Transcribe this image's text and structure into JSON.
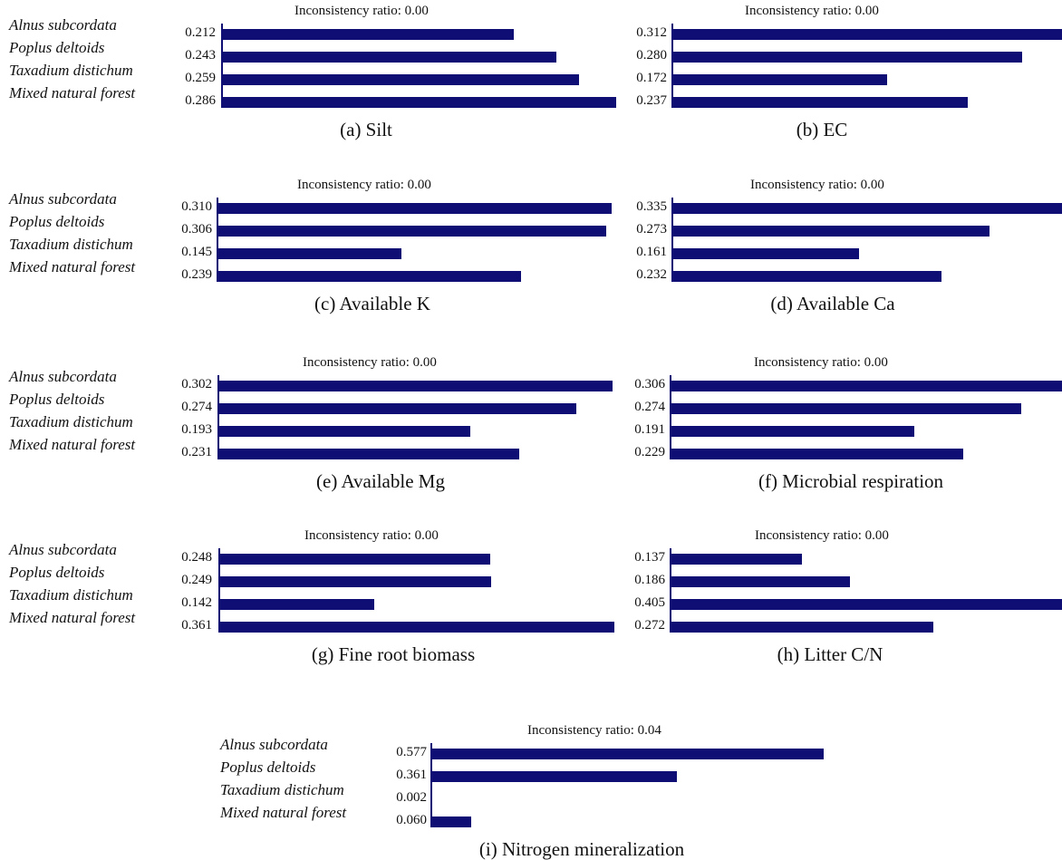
{
  "species": [
    "Alnus subcordata",
    "Poplus deltoids",
    "Taxadium distichum",
    "Mixed natural forest"
  ],
  "colors": {
    "bar": "#0e0e74"
  },
  "chart_data": [
    {
      "type": "bar",
      "orientation": "horizontal",
      "title": "(a) Silt",
      "inconsistency": "Inconsistency ratio: 0.00",
      "categories": [
        "Alnus subcordata",
        "Poplus deltoids",
        "Taxadium distichum",
        "Mixed natural forest"
      ],
      "values": [
        0.212,
        0.243,
        0.259,
        0.286
      ],
      "value_labels": [
        "0.212",
        "0.243",
        "0.259",
        "0.286"
      ],
      "xlim": [
        0,
        0.286
      ]
    },
    {
      "type": "bar",
      "orientation": "horizontal",
      "title": "(b) EC",
      "inconsistency": "Inconsistency ratio: 0.00",
      "categories": [
        "Alnus subcordata",
        "Poplus deltoids",
        "Taxadium distichum",
        "Mixed natural forest"
      ],
      "values": [
        0.312,
        0.28,
        0.172,
        0.237
      ],
      "value_labels": [
        "0.312",
        "0.280",
        "0.172",
        "0.237"
      ],
      "xlim": [
        0,
        0.312
      ]
    },
    {
      "type": "bar",
      "orientation": "horizontal",
      "title": "(c) Available K",
      "inconsistency": "Inconsistency ratio: 0.00",
      "categories": [
        "Alnus subcordata",
        "Poplus deltoids",
        "Taxadium distichum",
        "Mixed natural forest"
      ],
      "values": [
        0.31,
        0.306,
        0.145,
        0.239
      ],
      "value_labels": [
        "0.310",
        "0.306",
        "0.145",
        "0.239"
      ],
      "xlim": [
        0,
        0.31
      ]
    },
    {
      "type": "bar",
      "orientation": "horizontal",
      "title": "(d) Available Ca",
      "inconsistency": "Inconsistency ratio: 0.00",
      "categories": [
        "Alnus subcordata",
        "Poplus deltoids",
        "Taxadium distichum",
        "Mixed natural forest"
      ],
      "values": [
        0.335,
        0.273,
        0.161,
        0.232
      ],
      "value_labels": [
        "0.335",
        "0.273",
        "0.161",
        "0.232"
      ],
      "xlim": [
        0,
        0.335
      ]
    },
    {
      "type": "bar",
      "orientation": "horizontal",
      "title": "(e) Available Mg",
      "inconsistency": "Inconsistency ratio: 0.00",
      "categories": [
        "Alnus subcordata",
        "Poplus deltoids",
        "Taxadium distichum",
        "Mixed natural forest"
      ],
      "values": [
        0.302,
        0.274,
        0.193,
        0.231
      ],
      "value_labels": [
        "0.302",
        "0.274",
        "0.193",
        "0.231"
      ],
      "xlim": [
        0,
        0.302
      ]
    },
    {
      "type": "bar",
      "orientation": "horizontal",
      "title": "(f) Microbial respiration",
      "inconsistency": "Inconsistency ratio: 0.00",
      "categories": [
        "Alnus subcordata",
        "Poplus deltoids",
        "Taxadium distichum",
        "Mixed natural forest"
      ],
      "values": [
        0.306,
        0.274,
        0.191,
        0.229
      ],
      "value_labels": [
        "0.306",
        "0.274",
        "0.191",
        "0.229"
      ],
      "xlim": [
        0,
        0.306
      ]
    },
    {
      "type": "bar",
      "orientation": "horizontal",
      "title": "(g) Fine root biomass",
      "inconsistency": "Inconsistency ratio: 0.00",
      "categories": [
        "Alnus subcordata",
        "Poplus deltoids",
        "Taxadium distichum",
        "Mixed natural forest"
      ],
      "values": [
        0.248,
        0.249,
        0.142,
        0.361
      ],
      "value_labels": [
        "0.248",
        "0.249",
        "0.142",
        "0.361"
      ],
      "xlim": [
        0,
        0.361
      ]
    },
    {
      "type": "bar",
      "orientation": "horizontal",
      "title": "(h) Litter C/N",
      "inconsistency": "Inconsistency ratio: 0.00",
      "categories": [
        "Alnus subcordata",
        "Poplus deltoids",
        "Taxadium distichum",
        "Mixed natural forest"
      ],
      "values": [
        0.137,
        0.186,
        0.405,
        0.272
      ],
      "value_labels": [
        "0.137",
        "0.186",
        "0.405",
        "0.272"
      ],
      "xlim": [
        0,
        0.405
      ]
    },
    {
      "type": "bar",
      "orientation": "horizontal",
      "title": "(i) Nitrogen mineralization",
      "inconsistency": "Inconsistency ratio: 0.04",
      "categories": [
        "Alnus subcordata",
        "Poplus deltoids",
        "Taxadium distichum",
        "Mixed natural forest"
      ],
      "values": [
        0.577,
        0.361,
        0.002,
        0.06
      ],
      "value_labels": [
        "0.577",
        "0.361",
        "0.002",
        "0.060"
      ],
      "xlim": [
        0,
        0.577
      ]
    }
  ]
}
